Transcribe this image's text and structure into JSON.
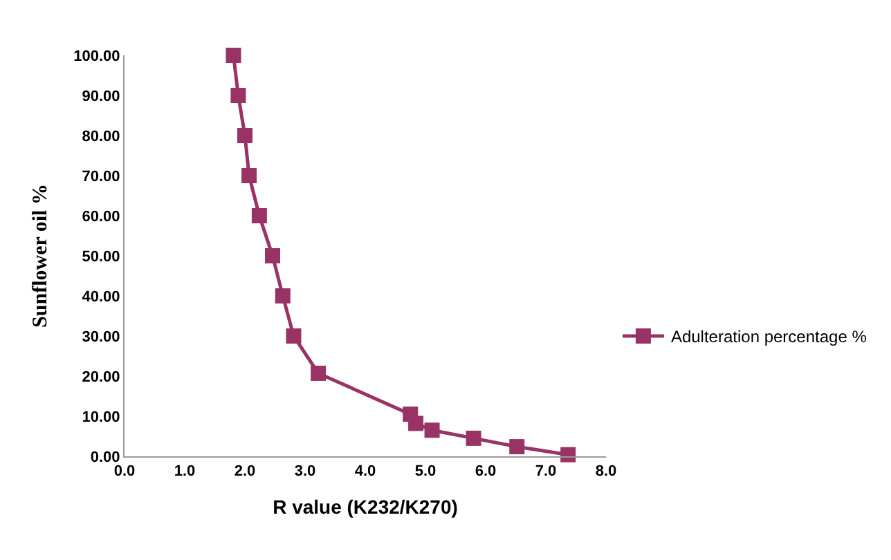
{
  "chart_data": {
    "type": "line",
    "xlabel": "R value (K232/K270)",
    "ylabel": "Sunflower oil %",
    "x": [
      1.81,
      1.89,
      2.0,
      2.07,
      2.24,
      2.46,
      2.63,
      2.81,
      3.22,
      4.75,
      4.84,
      5.11,
      5.8,
      6.52,
      7.37
    ],
    "series": [
      {
        "name": "Adulteration percentage %",
        "color": "#993366",
        "values": [
          100,
          90,
          80,
          70,
          60,
          50,
          40,
          30,
          20.7,
          10.5,
          8.2,
          6.5,
          4.5,
          2.4,
          0.4
        ]
      }
    ],
    "xlim": [
      0,
      8
    ],
    "xticks": [
      {
        "value": 0,
        "label": "0.0"
      },
      {
        "value": 1,
        "label": "1.0"
      },
      {
        "value": 2,
        "label": "2.0"
      },
      {
        "value": 3,
        "label": "3.0"
      },
      {
        "value": 4,
        "label": "4.0"
      },
      {
        "value": 5,
        "label": "5.0"
      },
      {
        "value": 6,
        "label": "6.0"
      },
      {
        "value": 7,
        "label": "7.0"
      },
      {
        "value": 8,
        "label": "8.0"
      }
    ],
    "ylim": [
      0,
      100
    ],
    "yticks": [
      {
        "value": 0,
        "label": "0.00"
      },
      {
        "value": 10,
        "label": "10.00"
      },
      {
        "value": 20,
        "label": "20.00"
      },
      {
        "value": 30,
        "label": "30.00"
      },
      {
        "value": 40,
        "label": "40.00"
      },
      {
        "value": 50,
        "label": "50.00"
      },
      {
        "value": 60,
        "label": "60.00"
      },
      {
        "value": 70,
        "label": "70.00"
      },
      {
        "value": 80,
        "label": "80.00"
      },
      {
        "value": 90,
        "label": "90.00"
      },
      {
        "value": 100,
        "label": "100.00"
      }
    ],
    "legend": "right",
    "marker": "square",
    "line_style": "solid"
  }
}
